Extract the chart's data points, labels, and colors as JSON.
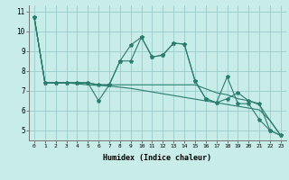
{
  "xlabel": "Humidex (Indice chaleur)",
  "background_color": "#c8ece8",
  "grid_color": "#99cccc",
  "line_color": "#2a7d6e",
  "xlim": [
    -0.5,
    23.5
  ],
  "ylim": [
    4.5,
    11.3
  ],
  "yticks": [
    5,
    6,
    7,
    8,
    9,
    10,
    11
  ],
  "xticks": [
    0,
    1,
    2,
    3,
    4,
    5,
    6,
    7,
    8,
    9,
    10,
    11,
    12,
    13,
    14,
    15,
    16,
    17,
    18,
    19,
    20,
    21,
    22,
    23
  ],
  "series": [
    {
      "y": [
        10.7,
        7.4,
        7.4,
        7.4,
        7.4,
        7.4,
        6.5,
        7.3,
        8.5,
        9.3,
        9.7,
        8.7,
        8.8,
        9.4,
        9.35,
        7.5,
        6.6,
        6.4,
        7.7,
        6.35,
        6.35,
        5.55,
        5.0,
        4.75
      ],
      "marker": "*"
    },
    {
      "y": [
        10.7,
        7.4,
        7.4,
        7.4,
        7.4,
        7.4,
        7.3,
        7.3,
        8.5,
        8.5,
        9.7,
        8.7,
        8.8,
        9.4,
        9.35,
        7.5,
        6.6,
        6.4,
        6.6,
        6.9,
        6.5,
        6.35,
        5.0,
        4.75
      ],
      "marker": "*"
    },
    {
      "y": [
        10.7,
        7.4,
        7.4,
        7.4,
        7.4,
        7.4,
        7.3,
        7.3,
        7.3,
        7.3,
        7.3,
        7.3,
        7.3,
        7.3,
        7.3,
        7.3,
        7.1,
        6.9,
        6.8,
        6.6,
        6.5,
        6.3,
        5.5,
        4.75
      ],
      "marker": null
    },
    {
      "y": [
        10.7,
        7.4,
        7.4,
        7.4,
        7.35,
        7.3,
        7.27,
        7.24,
        7.18,
        7.12,
        7.03,
        6.94,
        6.85,
        6.76,
        6.67,
        6.58,
        6.49,
        6.4,
        6.31,
        6.22,
        6.13,
        6.04,
        5.5,
        4.75
      ],
      "marker": null
    }
  ]
}
